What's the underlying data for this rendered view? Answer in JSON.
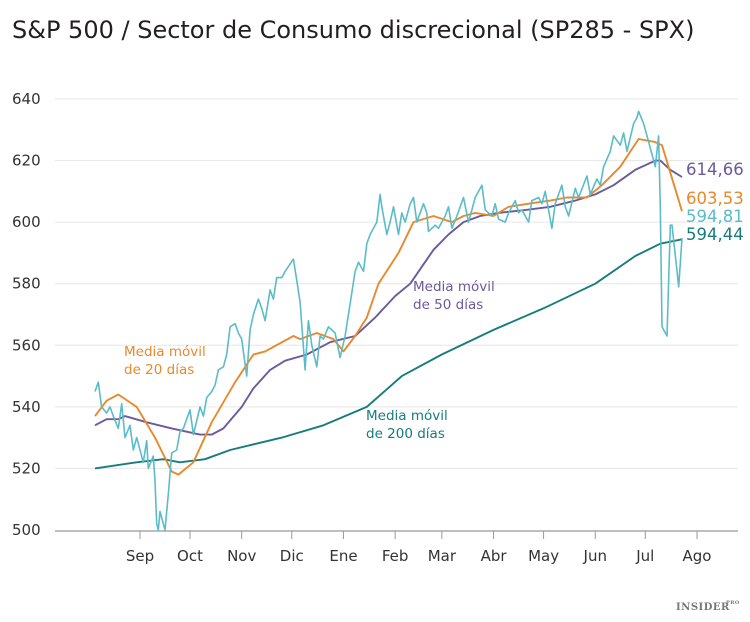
{
  "chart_data": {
    "type": "line",
    "title": "S&P 500 / Sector de Consumo discrecional (SP285 - SPX)",
    "xlabel": "",
    "ylabel": "",
    "ylim": [
      500,
      640
    ],
    "yticks": [
      500,
      520,
      540,
      560,
      580,
      600,
      620,
      640
    ],
    "grid": true,
    "legend": "none",
    "xticks": [
      {
        "label": "Sep",
        "date": "2024-09-01"
      },
      {
        "label": "Oct",
        "date": "2024-10-01"
      },
      {
        "label": "Nov",
        "date": "2024-11-01"
      },
      {
        "label": "Dic",
        "date": "2024-12-01"
      },
      {
        "label": "Ene",
        "date": "2025-01-01"
      },
      {
        "label": "Feb",
        "date": "2025-02-01"
      },
      {
        "label": "Mar",
        "date": "2025-03-01"
      },
      {
        "label": "Abr",
        "date": "2025-04-01"
      },
      {
        "label": "May",
        "date": "2025-05-01"
      },
      {
        "label": "Jun",
        "date": "2025-06-01"
      },
      {
        "label": "Jul",
        "date": "2025-07-01"
      },
      {
        "label": "Ago",
        "date": "2025-08-01"
      }
    ],
    "series": [
      {
        "key": "price",
        "color": "#5bbcc9",
        "end_label": "594,81",
        "points": [
          [
            "2024-08-05",
            545
          ],
          [
            "2024-08-07",
            548
          ],
          [
            "2024-08-09",
            540
          ],
          [
            "2024-08-12",
            538
          ],
          [
            "2024-08-14",
            540
          ],
          [
            "2024-08-16",
            537
          ],
          [
            "2024-08-19",
            533
          ],
          [
            "2024-08-21",
            541
          ],
          [
            "2024-08-23",
            530
          ],
          [
            "2024-08-26",
            534
          ],
          [
            "2024-08-28",
            526
          ],
          [
            "2024-08-30",
            530
          ],
          [
            "2024-09-03",
            522
          ],
          [
            "2024-09-05",
            529
          ],
          [
            "2024-09-06",
            520
          ],
          [
            "2024-09-09",
            524
          ],
          [
            "2024-09-10",
            516
          ],
          [
            "2024-09-11",
            502
          ],
          [
            "2024-09-12",
            500
          ],
          [
            "2024-09-13",
            506
          ],
          [
            "2024-09-16",
            500
          ],
          [
            "2024-09-18",
            512
          ],
          [
            "2024-09-20",
            525
          ],
          [
            "2024-09-23",
            526
          ],
          [
            "2024-09-25",
            532
          ],
          [
            "2024-09-27",
            533
          ],
          [
            "2024-10-01",
            539
          ],
          [
            "2024-10-03",
            531
          ],
          [
            "2024-10-07",
            540
          ],
          [
            "2024-10-09",
            537
          ],
          [
            "2024-10-11",
            543
          ],
          [
            "2024-10-14",
            545
          ],
          [
            "2024-10-16",
            547
          ],
          [
            "2024-10-18",
            552
          ],
          [
            "2024-10-21",
            553
          ],
          [
            "2024-10-23",
            557
          ],
          [
            "2024-10-25",
            566
          ],
          [
            "2024-10-28",
            567
          ],
          [
            "2024-10-30",
            564
          ],
          [
            "2024-11-01",
            562
          ],
          [
            "2024-11-04",
            550
          ],
          [
            "2024-11-06",
            565
          ],
          [
            "2024-11-08",
            570
          ],
          [
            "2024-11-11",
            575
          ],
          [
            "2024-11-13",
            572
          ],
          [
            "2024-11-15",
            568
          ],
          [
            "2024-11-18",
            578
          ],
          [
            "2024-11-20",
            575
          ],
          [
            "2024-11-22",
            582
          ],
          [
            "2024-11-25",
            582
          ],
          [
            "2024-11-27",
            584
          ],
          [
            "2024-12-02",
            588
          ],
          [
            "2024-12-04",
            581
          ],
          [
            "2024-12-06",
            574
          ],
          [
            "2024-12-09",
            552
          ],
          [
            "2024-12-11",
            568
          ],
          [
            "2024-12-13",
            560
          ],
          [
            "2024-12-16",
            553
          ],
          [
            "2024-12-18",
            563
          ],
          [
            "2024-12-20",
            562
          ],
          [
            "2024-12-23",
            566
          ],
          [
            "2024-12-27",
            564
          ],
          [
            "2024-12-30",
            556
          ],
          [
            "2025-01-02",
            563
          ],
          [
            "2025-01-06",
            577
          ],
          [
            "2025-01-08",
            584
          ],
          [
            "2025-01-10",
            587
          ],
          [
            "2025-01-13",
            584
          ],
          [
            "2025-01-15",
            593
          ],
          [
            "2025-01-17",
            596
          ],
          [
            "2025-01-21",
            600
          ],
          [
            "2025-01-23",
            609
          ],
          [
            "2025-01-24",
            605
          ],
          [
            "2025-01-27",
            596
          ],
          [
            "2025-01-29",
            600
          ],
          [
            "2025-01-31",
            605
          ],
          [
            "2025-02-03",
            596
          ],
          [
            "2025-02-05",
            603
          ],
          [
            "2025-02-07",
            600
          ],
          [
            "2025-02-10",
            606
          ],
          [
            "2025-02-12",
            608
          ],
          [
            "2025-02-14",
            600
          ],
          [
            "2025-02-18",
            606
          ],
          [
            "2025-02-20",
            603
          ],
          [
            "2025-02-21",
            597
          ],
          [
            "2025-02-25",
            599
          ],
          [
            "2025-02-27",
            598
          ],
          [
            "2025-03-03",
            602
          ],
          [
            "2025-03-05",
            605
          ],
          [
            "2025-03-07",
            598
          ],
          [
            "2025-03-10",
            602
          ],
          [
            "2025-03-12",
            605
          ],
          [
            "2025-03-14",
            608
          ],
          [
            "2025-03-17",
            600
          ],
          [
            "2025-03-19",
            604
          ],
          [
            "2025-03-21",
            608
          ],
          [
            "2025-03-25",
            612
          ],
          [
            "2025-03-27",
            604
          ],
          [
            "2025-03-31",
            602
          ],
          [
            "2025-04-02",
            606
          ],
          [
            "2025-04-04",
            601
          ],
          [
            "2025-04-08",
            600
          ],
          [
            "2025-04-10",
            603
          ],
          [
            "2025-04-14",
            607
          ],
          [
            "2025-04-16",
            603
          ],
          [
            "2025-04-18",
            604
          ],
          [
            "2025-04-22",
            600
          ],
          [
            "2025-04-24",
            607
          ],
          [
            "2025-04-28",
            608
          ],
          [
            "2025-04-30",
            606
          ],
          [
            "2025-05-02",
            610
          ],
          [
            "2025-05-06",
            598
          ],
          [
            "2025-05-08",
            606
          ],
          [
            "2025-05-12",
            612
          ],
          [
            "2025-05-14",
            605
          ],
          [
            "2025-05-16",
            602
          ],
          [
            "2025-05-20",
            611
          ],
          [
            "2025-05-22",
            608
          ],
          [
            "2025-05-27",
            615
          ],
          [
            "2025-05-29",
            609
          ],
          [
            "2025-06-02",
            614
          ],
          [
            "2025-06-04",
            612
          ],
          [
            "2025-06-06",
            618
          ],
          [
            "2025-06-10",
            623
          ],
          [
            "2025-06-12",
            628
          ],
          [
            "2025-06-16",
            625
          ],
          [
            "2025-06-18",
            629
          ],
          [
            "2025-06-20",
            623
          ],
          [
            "2025-06-24",
            632
          ],
          [
            "2025-06-26",
            634
          ],
          [
            "2025-06-27",
            636
          ],
          [
            "2025-06-30",
            632
          ],
          [
            "2025-07-02",
            628
          ],
          [
            "2025-07-07",
            618
          ],
          [
            "2025-07-09",
            628
          ],
          [
            "2025-07-10",
            605
          ],
          [
            "2025-07-11",
            566
          ],
          [
            "2025-07-14",
            563
          ],
          [
            "2025-07-16",
            599
          ],
          [
            "2025-07-17",
            599
          ],
          [
            "2025-07-21",
            579
          ],
          [
            "2025-07-23",
            594.81
          ]
        ]
      },
      {
        "key": "ma20",
        "name": "Media móvil de 20 días",
        "color": "#e8892d",
        "end_label": "603,53",
        "points": [
          [
            "2024-08-05",
            537
          ],
          [
            "2024-08-12",
            542
          ],
          [
            "2024-08-19",
            544
          ],
          [
            "2024-08-30",
            540
          ],
          [
            "2024-09-10",
            530
          ],
          [
            "2024-09-20",
            519
          ],
          [
            "2024-09-24",
            518
          ],
          [
            "2024-10-03",
            522
          ],
          [
            "2024-10-14",
            535
          ],
          [
            "2024-10-28",
            548
          ],
          [
            "2024-11-08",
            557
          ],
          [
            "2024-11-15",
            558
          ],
          [
            "2024-12-02",
            563
          ],
          [
            "2024-12-06",
            562
          ],
          [
            "2024-12-16",
            564
          ],
          [
            "2024-12-26",
            562
          ],
          [
            "2025-01-01",
            558
          ],
          [
            "2025-01-08",
            563
          ],
          [
            "2025-01-15",
            569
          ],
          [
            "2025-01-22",
            580
          ],
          [
            "2025-02-03",
            590
          ],
          [
            "2025-02-12",
            600
          ],
          [
            "2025-02-24",
            602
          ],
          [
            "2025-03-07",
            600
          ],
          [
            "2025-03-14",
            602
          ],
          [
            "2025-03-21",
            603
          ],
          [
            "2025-04-01",
            602
          ],
          [
            "2025-04-10",
            605
          ],
          [
            "2025-04-22",
            606
          ],
          [
            "2025-05-05",
            607
          ],
          [
            "2025-05-15",
            608
          ],
          [
            "2025-05-27",
            608
          ],
          [
            "2025-06-05",
            612
          ],
          [
            "2025-06-16",
            618
          ],
          [
            "2025-06-27",
            627
          ],
          [
            "2025-07-07",
            626
          ],
          [
            "2025-07-11",
            625
          ],
          [
            "2025-07-23",
            603.53
          ]
        ]
      },
      {
        "key": "ma50",
        "name": "Media móvil de 50 días",
        "color": "#6b5b9a",
        "end_label": "614,66",
        "points": [
          [
            "2024-08-05",
            534
          ],
          [
            "2024-08-12",
            536
          ],
          [
            "2024-08-19",
            536
          ],
          [
            "2024-08-23",
            537
          ],
          [
            "2024-09-05",
            535
          ],
          [
            "2024-09-20",
            533
          ],
          [
            "2024-10-07",
            531
          ],
          [
            "2024-10-14",
            531
          ],
          [
            "2024-10-21",
            533
          ],
          [
            "2024-11-01",
            540
          ],
          [
            "2024-11-08",
            546
          ],
          [
            "2024-11-18",
            552
          ],
          [
            "2024-11-27",
            555
          ],
          [
            "2024-12-10",
            557
          ],
          [
            "2024-12-24",
            561
          ],
          [
            "2025-01-08",
            563
          ],
          [
            "2025-01-20",
            569
          ],
          [
            "2025-02-01",
            576
          ],
          [
            "2025-02-10",
            580
          ],
          [
            "2025-02-24",
            591
          ],
          [
            "2025-03-05",
            596
          ],
          [
            "2025-03-14",
            600
          ],
          [
            "2025-03-24",
            602
          ],
          [
            "2025-04-04",
            603
          ],
          [
            "2025-04-21",
            604
          ],
          [
            "2025-05-05",
            605
          ],
          [
            "2025-05-20",
            607
          ],
          [
            "2025-06-01",
            609
          ],
          [
            "2025-06-12",
            612
          ],
          [
            "2025-06-25",
            617
          ],
          [
            "2025-07-07",
            620
          ],
          [
            "2025-07-10",
            620
          ],
          [
            "2025-07-16",
            617
          ],
          [
            "2025-07-23",
            614.66
          ]
        ]
      },
      {
        "key": "ma200",
        "name": "Media móvil de 200 días",
        "color": "#167c7c",
        "end_label": "594,44",
        "points": [
          [
            "2024-08-05",
            520
          ],
          [
            "2024-08-30",
            522
          ],
          [
            "2024-09-15",
            523
          ],
          [
            "2024-09-25",
            522
          ],
          [
            "2024-10-10",
            523
          ],
          [
            "2024-10-25",
            526
          ],
          [
            "2024-11-25",
            530
          ],
          [
            "2024-12-20",
            534
          ],
          [
            "2025-01-15",
            540
          ],
          [
            "2025-02-05",
            550
          ],
          [
            "2025-03-01",
            557
          ],
          [
            "2025-04-01",
            565
          ],
          [
            "2025-05-01",
            572
          ],
          [
            "2025-06-01",
            580
          ],
          [
            "2025-06-25",
            589
          ],
          [
            "2025-07-10",
            593
          ],
          [
            "2025-07-23",
            594.44
          ]
        ]
      }
    ],
    "annotations": {
      "ma20": [
        "Media móvil",
        "de 20 días"
      ],
      "ma50": [
        "Media móvil",
        "de 50 días"
      ],
      "ma200": [
        "Media móvil",
        "de 200 días"
      ]
    }
  },
  "logo": {
    "text": "INSIDER",
    "sup": "PRO"
  }
}
